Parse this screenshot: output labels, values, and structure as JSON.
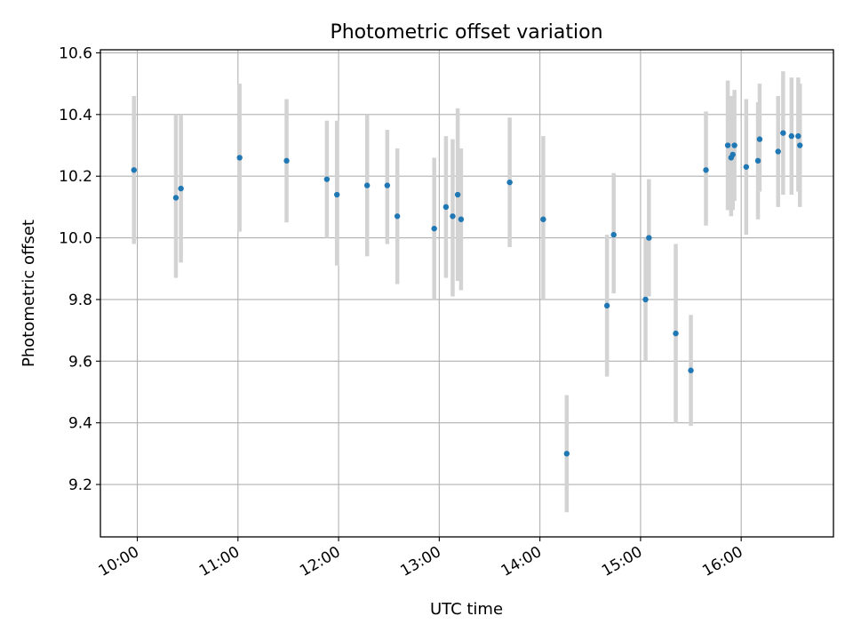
{
  "chart_data": {
    "type": "scatter",
    "title": "Photometric offset variation",
    "xlabel": "UTC time",
    "ylabel": "Photometric offset",
    "xlim": [
      "09:38",
      "16:55"
    ],
    "ylim": [
      9.03,
      10.61
    ],
    "x_ticks": [
      "10:00",
      "11:00",
      "12:00",
      "13:00",
      "14:00",
      "15:00",
      "16:00"
    ],
    "y_ticks": [
      9.2,
      9.4,
      9.6,
      9.8,
      10.0,
      10.2,
      10.4,
      10.6
    ],
    "y_tick_labels": [
      "9.2",
      "9.4",
      "9.6",
      "9.8",
      "10.0",
      "10.2",
      "10.4",
      "10.6"
    ],
    "grid": true,
    "legend": "none",
    "colors": {
      "points": "#1f77b4",
      "errorbars": "#d3d3d3",
      "grid": "#b0b0b0"
    },
    "series": [
      {
        "points": [
          {
            "x": "09:58",
            "y": 10.22,
            "ylo": 9.98,
            "yhi": 10.46
          },
          {
            "x": "10:23",
            "y": 10.13,
            "ylo": 9.87,
            "yhi": 10.4
          },
          {
            "x": "10:26",
            "y": 10.16,
            "ylo": 9.92,
            "yhi": 10.4
          },
          {
            "x": "11:01",
            "y": 10.26,
            "ylo": 10.02,
            "yhi": 10.5
          },
          {
            "x": "11:29",
            "y": 10.25,
            "ylo": 10.05,
            "yhi": 10.45
          },
          {
            "x": "11:53",
            "y": 10.19,
            "ylo": 10.0,
            "yhi": 10.38
          },
          {
            "x": "11:59",
            "y": 10.14,
            "ylo": 9.91,
            "yhi": 10.38
          },
          {
            "x": "12:17",
            "y": 10.17,
            "ylo": 9.94,
            "yhi": 10.4
          },
          {
            "x": "12:29",
            "y": 10.17,
            "ylo": 9.98,
            "yhi": 10.35
          },
          {
            "x": "12:35",
            "y": 10.07,
            "ylo": 9.85,
            "yhi": 10.29
          },
          {
            "x": "12:57",
            "y": 10.03,
            "ylo": 9.8,
            "yhi": 10.26
          },
          {
            "x": "13:04",
            "y": 10.1,
            "ylo": 9.87,
            "yhi": 10.33
          },
          {
            "x": "13:08",
            "y": 10.07,
            "ylo": 9.81,
            "yhi": 10.32
          },
          {
            "x": "13:11",
            "y": 10.14,
            "ylo": 9.86,
            "yhi": 10.42
          },
          {
            "x": "13:13",
            "y": 10.06,
            "ylo": 9.83,
            "yhi": 10.29
          },
          {
            "x": "13:42",
            "y": 10.18,
            "ylo": 9.97,
            "yhi": 10.39
          },
          {
            "x": "14:02",
            "y": 10.06,
            "ylo": 9.8,
            "yhi": 10.33
          },
          {
            "x": "14:16",
            "y": 9.3,
            "ylo": 9.11,
            "yhi": 9.49
          },
          {
            "x": "14:40",
            "y": 9.78,
            "ylo": 9.55,
            "yhi": 10.01
          },
          {
            "x": "14:44",
            "y": 10.01,
            "ylo": 9.82,
            "yhi": 10.21
          },
          {
            "x": "15:03",
            "y": 9.8,
            "ylo": 9.6,
            "yhi": 10.0
          },
          {
            "x": "15:05",
            "y": 10.0,
            "ylo": 9.81,
            "yhi": 10.19
          },
          {
            "x": "15:21",
            "y": 9.69,
            "ylo": 9.4,
            "yhi": 9.98
          },
          {
            "x": "15:30",
            "y": 9.57,
            "ylo": 9.39,
            "yhi": 9.75
          },
          {
            "x": "15:39",
            "y": 10.22,
            "ylo": 10.04,
            "yhi": 10.41
          },
          {
            "x": "15:52",
            "y": 10.3,
            "ylo": 10.09,
            "yhi": 10.51
          },
          {
            "x": "15:54",
            "y": 10.26,
            "ylo": 10.07,
            "yhi": 10.46
          },
          {
            "x": "15:55",
            "y": 10.27,
            "ylo": 10.09,
            "yhi": 10.45
          },
          {
            "x": "15:56",
            "y": 10.3,
            "ylo": 10.12,
            "yhi": 10.48
          },
          {
            "x": "16:03",
            "y": 10.23,
            "ylo": 10.01,
            "yhi": 10.45
          },
          {
            "x": "16:10",
            "y": 10.25,
            "ylo": 10.06,
            "yhi": 10.44
          },
          {
            "x": "16:11",
            "y": 10.32,
            "ylo": 10.15,
            "yhi": 10.5
          },
          {
            "x": "16:22",
            "y": 10.28,
            "ylo": 10.1,
            "yhi": 10.46
          },
          {
            "x": "16:25",
            "y": 10.34,
            "ylo": 10.14,
            "yhi": 10.54
          },
          {
            "x": "16:30",
            "y": 10.33,
            "ylo": 10.14,
            "yhi": 10.52
          },
          {
            "x": "16:34",
            "y": 10.33,
            "ylo": 10.15,
            "yhi": 10.52
          },
          {
            "x": "16:35",
            "y": 10.3,
            "ylo": 10.1,
            "yhi": 10.5
          }
        ]
      }
    ]
  }
}
